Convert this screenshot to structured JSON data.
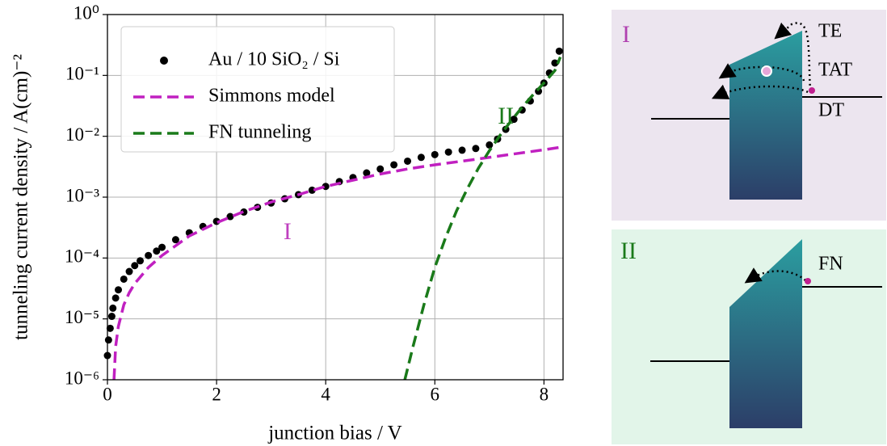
{
  "chart_data": {
    "type": "line",
    "xlabel": "junction bias / V",
    "ylabel": "tunneling current density / A(cm)⁻²",
    "log_y": true,
    "grid": true,
    "legend": "upper left",
    "xlim": [
      0,
      8.35
    ],
    "ylim": [
      1e-06,
      1
    ],
    "xticks": [
      0,
      2,
      4,
      6,
      8
    ],
    "yticks": [
      {
        "value": 1e-06,
        "label": "10⁻⁶"
      },
      {
        "value": 1e-05,
        "label": "10⁻⁵"
      },
      {
        "value": 0.0001,
        "label": "10⁻⁴"
      },
      {
        "value": 0.001,
        "label": "10⁻³"
      },
      {
        "value": 0.01,
        "label": "10⁻²"
      },
      {
        "value": 0.1,
        "label": "10⁻¹"
      },
      {
        "value": 1,
        "label": "10⁰"
      }
    ],
    "annotations": [
      {
        "text": "I",
        "x": 3.3,
        "y": 0.00025,
        "color": "#bf40bf"
      },
      {
        "text": "II",
        "x": 7.3,
        "y": 0.02,
        "color": "#1a7a1a"
      }
    ],
    "series": [
      {
        "name": "Au / 10 SiO₂ / Si",
        "style": "markers",
        "color": "#000000",
        "x": [
          0,
          0.02,
          0.05,
          0.08,
          0.1,
          0.15,
          0.2,
          0.3,
          0.4,
          0.5,
          0.6,
          0.75,
          0.9,
          1,
          1.25,
          1.5,
          1.75,
          2,
          2.25,
          2.5,
          2.75,
          3,
          3.25,
          3.5,
          3.75,
          4,
          4.25,
          4.5,
          4.75,
          5,
          5.25,
          5.5,
          5.75,
          6,
          6.25,
          6.5,
          6.75,
          7,
          7.15,
          7.3,
          7.45,
          7.6,
          7.75,
          7.9,
          8,
          8.1,
          8.2,
          8.28
        ],
        "values": [
          2.5e-06,
          4.5e-06,
          7e-06,
          1.1e-05,
          1.5e-05,
          2.2e-05,
          3e-05,
          4.5e-05,
          6e-05,
          7.5e-05,
          9e-05,
          0.00011,
          0.00013,
          0.00015,
          0.0002,
          0.00026,
          0.00033,
          0.0004,
          0.00048,
          0.00057,
          0.00068,
          0.0008,
          0.00094,
          0.0011,
          0.0013,
          0.0015,
          0.0018,
          0.0021,
          0.0025,
          0.0029,
          0.0034,
          0.0039,
          0.0045,
          0.005,
          0.0055,
          0.0059,
          0.0063,
          0.0072,
          0.009,
          0.013,
          0.019,
          0.027,
          0.038,
          0.055,
          0.075,
          0.11,
          0.16,
          0.25
        ]
      },
      {
        "name": "Simmons model",
        "style": "dashed",
        "color": "#c020c0",
        "x": [
          0.12,
          0.15,
          0.2,
          0.3,
          0.4,
          0.5,
          0.75,
          1,
          1.5,
          2,
          2.5,
          3,
          3.5,
          4,
          4.5,
          5,
          5.5,
          6,
          6.5,
          7,
          7.5,
          8,
          8.35
        ],
        "values": [
          1e-06,
          3.5e-06,
          7.5e-06,
          1.7e-05,
          2.7e-05,
          3.8e-05,
          7e-05,
          0.00011,
          0.00023,
          0.00038,
          0.00058,
          0.00083,
          0.0011,
          0.0015,
          0.0019,
          0.0024,
          0.0029,
          0.0034,
          0.0039,
          0.0045,
          0.0052,
          0.006,
          0.0067
        ]
      },
      {
        "name": "FN tunneling",
        "style": "dashed",
        "color": "#1a7a1a",
        "x": [
          5.45,
          5.6,
          5.8,
          6,
          6.2,
          6.4,
          6.6,
          6.8,
          7,
          7.2,
          7.4,
          7.6,
          7.8,
          8,
          8.2,
          8.3
        ],
        "values": [
          1e-06,
          3.5e-06,
          1.7e-05,
          7e-05,
          0.00022,
          0.0006,
          0.0014,
          0.003,
          0.0058,
          0.0105,
          0.018,
          0.03,
          0.048,
          0.075,
          0.12,
          0.2
        ]
      }
    ]
  },
  "band_diagrams": [
    {
      "label": "I",
      "labels": [
        "TE",
        "TAT",
        "DT"
      ]
    },
    {
      "label": "II",
      "labels": [
        "FN"
      ]
    }
  ]
}
